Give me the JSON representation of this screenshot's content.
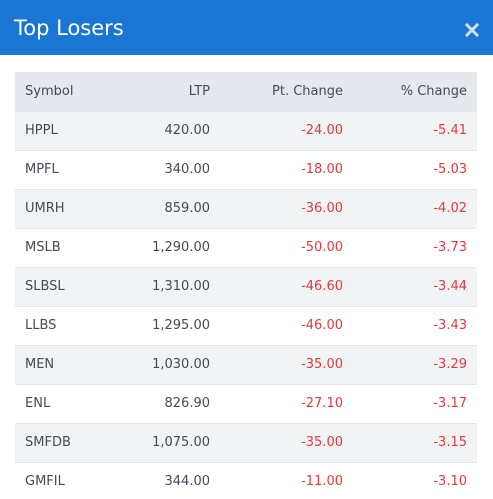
{
  "modal": {
    "title": "Top Losers",
    "close_icon": "close-icon",
    "header_color": "#1976d2"
  },
  "table": {
    "headers": {
      "symbol": "Symbol",
      "ltp": "LTP",
      "pt_change": "Pt. Change",
      "pct_change": "% Change"
    },
    "negative_color": "#e03b3b",
    "rows": [
      {
        "symbol": "HPPL",
        "ltp": "420.00",
        "pt_change": "-24.00",
        "pct_change": "-5.41"
      },
      {
        "symbol": "MPFL",
        "ltp": "340.00",
        "pt_change": "-18.00",
        "pct_change": "-5.03"
      },
      {
        "symbol": "UMRH",
        "ltp": "859.00",
        "pt_change": "-36.00",
        "pct_change": "-4.02"
      },
      {
        "symbol": "MSLB",
        "ltp": "1,290.00",
        "pt_change": "-50.00",
        "pct_change": "-3.73"
      },
      {
        "symbol": "SLBSL",
        "ltp": "1,310.00",
        "pt_change": "-46.60",
        "pct_change": "-3.44"
      },
      {
        "symbol": "LLBS",
        "ltp": "1,295.00",
        "pt_change": "-46.00",
        "pct_change": "-3.43"
      },
      {
        "symbol": "MEN",
        "ltp": "1,030.00",
        "pt_change": "-35.00",
        "pct_change": "-3.29"
      },
      {
        "symbol": "ENL",
        "ltp": "826.90",
        "pt_change": "-27.10",
        "pct_change": "-3.17"
      },
      {
        "symbol": "SMFDB",
        "ltp": "1,075.00",
        "pt_change": "-35.00",
        "pct_change": "-3.15"
      },
      {
        "symbol": "GMFIL",
        "ltp": "344.00",
        "pt_change": "-11.00",
        "pct_change": "-3.10"
      }
    ]
  }
}
